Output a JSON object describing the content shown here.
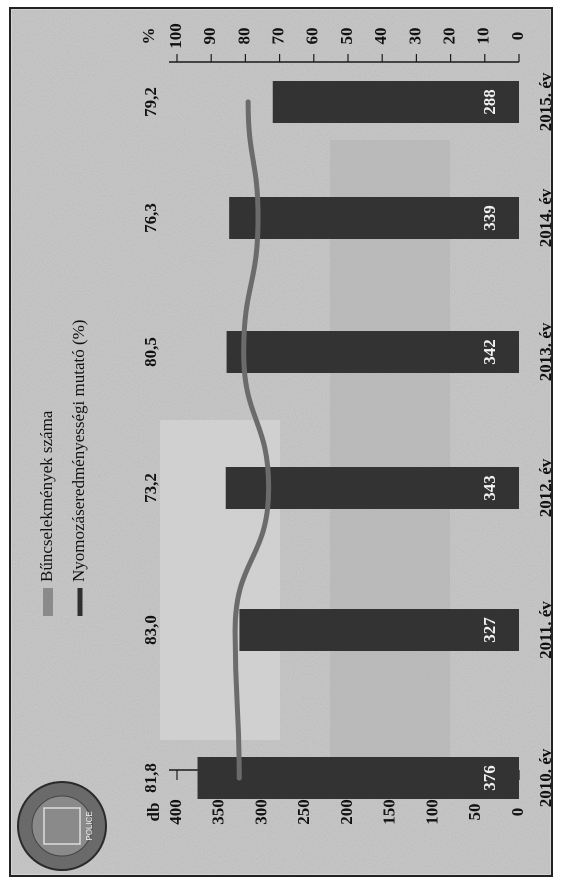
{
  "chart_data": {
    "type": "bar",
    "categories": [
      "2010. év",
      "2011. év",
      "2012. év",
      "2013. év",
      "2014. év",
      "2015. év"
    ],
    "series": [
      {
        "name": "Bűncselekmények száma",
        "values": [
          376,
          327,
          343,
          342,
          339,
          288
        ],
        "axis": "left"
      },
      {
        "name": "Nyomozáseredményességi mutató (%)",
        "values": [
          81.8,
          83.0,
          73.2,
          80.5,
          76.3,
          79.2
        ],
        "axis": "right"
      }
    ],
    "bar_labels": [
      "376",
      "327",
      "343",
      "342",
      "339",
      "288"
    ],
    "line_labels": [
      "81,8",
      "83,0",
      "73,2",
      "80,5",
      "76,3",
      "79,2"
    ],
    "left_axis": {
      "unit": "db",
      "ticks": [
        "0",
        "50",
        "100",
        "150",
        "200",
        "250",
        "300",
        "350",
        "400"
      ],
      "range": [
        0,
        400
      ]
    },
    "right_axis": {
      "unit": "%",
      "ticks": [
        "0",
        "10",
        "20",
        "30",
        "40",
        "50",
        "60",
        "70",
        "80",
        "90",
        "100"
      ],
      "range": [
        0,
        100
      ]
    },
    "legend": {
      "position": "top-left"
    },
    "grid": false,
    "orientation": "rotated-90-clockwise",
    "colors": {
      "bar": "#333333",
      "line": "#6b6b6b",
      "background": "#c9c9c9",
      "frame": "#222222"
    }
  },
  "logo": {
    "text": "POLICE",
    "icon": "police-badge-icon"
  }
}
